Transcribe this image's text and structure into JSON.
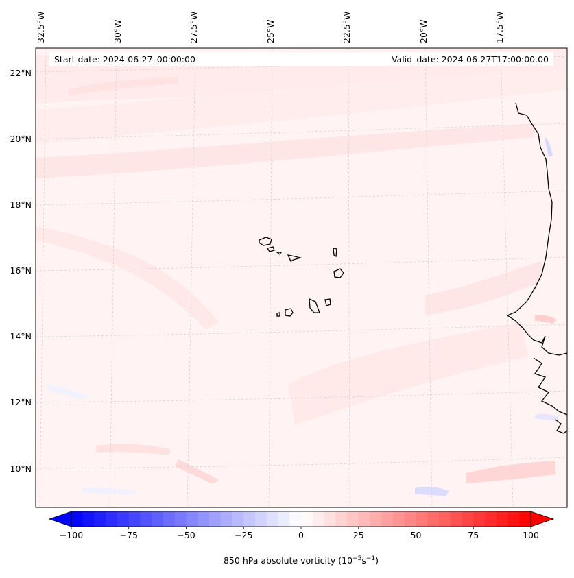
{
  "header": {
    "start_date": "Start date: 2024-06-27_00:00:00",
    "valid_date": "Valid_date: 2024-06-27T17:00:00.00"
  },
  "grid": {
    "lon_labels": [
      "32.5°W",
      "30°W",
      "27.5°W",
      "25°W",
      "22.5°W",
      "20°W",
      "17.5°W"
    ],
    "lat_labels": [
      "22°N",
      "20°N",
      "18°N",
      "16°N",
      "14°N",
      "12°N",
      "10°N"
    ]
  },
  "colorbar": {
    "ticks": [
      "−100",
      "−75",
      "−50",
      "−25",
      "0",
      "25",
      "50",
      "75",
      "100"
    ],
    "tick_values": [
      -100,
      -75,
      -50,
      -25,
      0,
      25,
      50,
      75,
      100
    ],
    "range": [
      -100,
      100
    ],
    "colormap": "bwr",
    "label_prefix": "850 hPa absolute vorticity (10",
    "label_exp1": "−5",
    "label_mid": "s",
    "label_exp2": "−1",
    "label_suffix": ")",
    "colors": {
      "min": "#0000ff",
      "mid": "#ffffff",
      "max": "#ff0000"
    }
  }
}
